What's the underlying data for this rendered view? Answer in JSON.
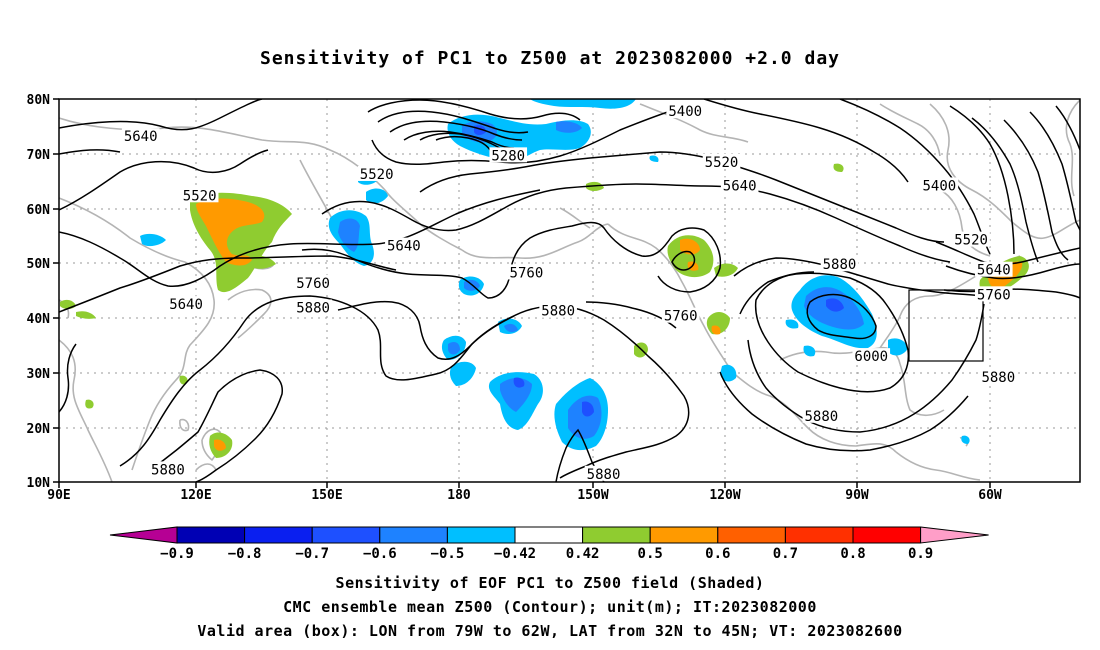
{
  "title": "Sensitivity of PC1 to Z500 at 2023082000 +2.0 day",
  "map": {
    "lat_labels": [
      "80N",
      "70N",
      "60N",
      "50N",
      "40N",
      "30N",
      "20N",
      "10N"
    ],
    "lon_labels": [
      "90E",
      "120E",
      "150E",
      "180",
      "150W",
      "120W",
      "90W",
      "60W"
    ],
    "contour_labels": [
      {
        "text": "5640",
        "lon": 108,
        "lat": 73.2
      },
      {
        "text": "5280",
        "lon": 189,
        "lat": 69.7
      },
      {
        "text": "5400",
        "lon": 228,
        "lat": 77.8
      },
      {
        "text": "5520",
        "lon": 121,
        "lat": 62.4
      },
      {
        "text": "5520",
        "lon": 160,
        "lat": 66.3
      },
      {
        "text": "5520",
        "lon": 236,
        "lat": 68.5
      },
      {
        "text": "5640",
        "lon": 240,
        "lat": 64.2
      },
      {
        "text": "5400",
        "lon": 284,
        "lat": 64.2
      },
      {
        "text": "5520",
        "lon": 291,
        "lat": 54.3
      },
      {
        "text": "5640",
        "lon": 166,
        "lat": 53.2
      },
      {
        "text": "5640",
        "lon": 118,
        "lat": 42.5
      },
      {
        "text": "5760",
        "lon": 146,
        "lat": 46.4
      },
      {
        "text": "5760",
        "lon": 193,
        "lat": 48.3
      },
      {
        "text": "5760",
        "lon": 227,
        "lat": 40.4
      },
      {
        "text": "5880",
        "lon": 146,
        "lat": 41.9
      },
      {
        "text": "5880",
        "lon": 200,
        "lat": 41.3
      },
      {
        "text": "5880",
        "lon": 262,
        "lat": 49.8
      },
      {
        "text": "5880",
        "lon": 258,
        "lat": 22.1
      },
      {
        "text": "5880",
        "lon": 114,
        "lat": 12.3
      },
      {
        "text": "5880",
        "lon": 210,
        "lat": 11.5
      },
      {
        "text": "5880",
        "lon": 297,
        "lat": 29.2
      },
      {
        "text": "6000",
        "lon": 269,
        "lat": 33.0
      },
      {
        "text": "5640",
        "lon": 296,
        "lat": 48.8
      },
      {
        "text": "5760",
        "lon": 296,
        "lat": 44.3
      }
    ],
    "valid_box": {
      "lon_west": -79,
      "lon_east": -62,
      "lat_south": 32,
      "lat_north": 45
    }
  },
  "colorbar": {
    "labels": [
      "-0.9",
      "-0.8",
      "-0.7",
      "-0.6",
      "-0.5",
      "-0.42",
      "0.42",
      "0.5",
      "0.6",
      "0.7",
      "0.8",
      "0.9"
    ],
    "colors": [
      "#b60094",
      "#0000b4",
      "#0a1ff0",
      "#1e50ff",
      "#1e82ff",
      "#00bfff",
      "#ffffff",
      "#8fcc30",
      "#ff9a00",
      "#ff6000",
      "#ff3000",
      "#ff0000",
      "#ff9ec8"
    ]
  },
  "captions": [
    "Sensitivity of EOF PC1 to Z500 field (Shaded)",
    "CMC ensemble mean Z500 (Contour); unit(m); IT:2023082000",
    "Valid area (box): LON from 79W to 62W, LAT from 32N to 45N; VT: 2023082600"
  ]
}
